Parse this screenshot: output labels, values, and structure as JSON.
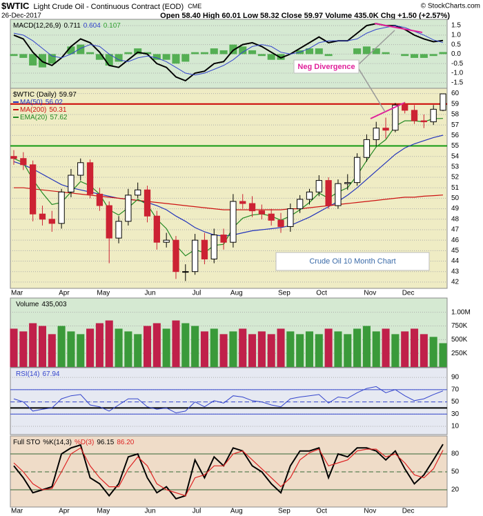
{
  "header": {
    "symbol": "$WTIC",
    "name": "Light Crude Oil - Continuous Contract (EOD)",
    "exchange": "CME",
    "date": "26-Dec-2017",
    "quote": "Open 58.40 High 60.01 Low 58.32 Close 59.97 Volume 435.0K Chg +1.50 (+2.57%)",
    "copyright": "© StockCharts.com"
  },
  "annotations": [
    "Neg Divergence",
    "Crude Oil 10 Month Chart"
  ],
  "chart_data": [
    {
      "type": "macd",
      "title": "MACD(12,26,9)",
      "background": "#d5e9d2",
      "grid": true,
      "ylim": [
        -1.8,
        1.83
      ],
      "yticks": [
        -1.5,
        {
          "value": -1,
          "label": "-1.0"
        },
        -0.5,
        {
          "value": 0,
          "label": "0.0"
        },
        0.5,
        {
          "value": 1,
          "label": "1.0"
        },
        1.5
      ],
      "series": [
        {
          "style": "histogram",
          "color": "#33a033",
          "values": [
            -0.1,
            -0.2,
            -0.6,
            -0.7,
            -0.5,
            0.0,
            0.4,
            0.5,
            0.1,
            -0.3,
            -0.6,
            -0.4,
            0.1,
            0.3,
            0.1,
            -0.3,
            -0.3,
            -0.5,
            -0.4,
            0.1,
            0.1,
            0.3,
            0.2,
            0.5,
            0.4,
            0.2,
            -0.1,
            -0.3,
            -0.3,
            0.0,
            0.2,
            0.3,
            0.3,
            -0.1,
            0.0,
            0.0,
            0.3,
            0.4,
            0.3,
            0.1,
            0.0,
            -0.1,
            -0.2,
            -0.2,
            -0.1,
            0.107
          ]
        },
        {
          "style": "line",
          "color": "#000000",
          "width": 2,
          "values": [
            1.0,
            0.8,
            0.1,
            -0.4,
            -0.6,
            -0.2,
            0.4,
            0.8,
            0.6,
            0.1,
            -0.6,
            -0.7,
            -0.3,
            0.1,
            0.0,
            -0.5,
            -0.7,
            -1.2,
            -1.4,
            -1.0,
            -0.9,
            -0.5,
            -0.4,
            0.2,
            0.5,
            0.6,
            0.4,
            0.1,
            -0.2,
            0.0,
            0.3,
            0.6,
            0.9,
            0.6,
            0.7,
            0.7,
            1.1,
            1.5,
            1.6,
            1.5,
            1.5,
            1.3,
            1.0,
            0.8,
            0.65,
            0.711
          ]
        },
        {
          "style": "line",
          "color": "#3344cc",
          "width": 1,
          "values": [
            1.1,
            1.0,
            0.7,
            0.3,
            -0.1,
            -0.2,
            0.0,
            0.3,
            0.5,
            0.4,
            0.0,
            -0.3,
            -0.4,
            -0.2,
            -0.1,
            -0.2,
            -0.4,
            -0.7,
            -1.0,
            -1.1,
            -1.0,
            -0.8,
            -0.6,
            -0.3,
            0.1,
            0.4,
            0.5,
            0.4,
            0.1,
            0.0,
            0.1,
            0.3,
            0.6,
            0.7,
            0.7,
            0.7,
            0.8,
            1.1,
            1.3,
            1.4,
            1.5,
            1.4,
            1.2,
            1.0,
            0.75,
            0.604
          ]
        }
      ],
      "legend_order": [
        1,
        2,
        0
      ]
    },
    {
      "type": "candlestick",
      "name": "$WTIC (Daily)",
      "background": "#efecc4",
      "grid": true,
      "up_color": "#ffffff",
      "down_color": "#cc2233",
      "ylim": [
        41.4,
        60.5
      ],
      "yticks": [
        42,
        43,
        44,
        45,
        46,
        47,
        48,
        49,
        50,
        51,
        52,
        53,
        54,
        55,
        56,
        57,
        58,
        59,
        60
      ],
      "categories": [
        "Mar",
        null,
        null,
        null,
        null,
        "Apr",
        null,
        null,
        null,
        "May",
        null,
        null,
        null,
        null,
        "Jun",
        null,
        null,
        null,
        null,
        "Jul",
        null,
        null,
        null,
        "Aug",
        null,
        null,
        null,
        null,
        "Sep",
        null,
        null,
        null,
        "Oct",
        null,
        null,
        null,
        null,
        "Nov",
        null,
        null,
        null,
        "Dec",
        null,
        null,
        null,
        null
      ],
      "open": [
        54.0,
        53.8,
        53.2,
        48.5,
        48.0,
        47.6,
        50.6,
        52.2,
        53.4,
        50.4,
        49.3,
        46.2,
        47.8,
        50.3,
        50.8,
        48.3,
        45.8,
        46.0,
        43.0,
        43.0,
        46.0,
        44.2,
        46.5,
        45.8,
        49.7,
        49.5,
        48.8,
        48.5,
        47.9,
        47.3,
        49.0,
        49.9,
        50.6,
        51.7,
        49.3,
        51.4,
        51.5,
        53.9,
        55.6,
        56.7,
        56.5,
        58.9,
        58.4,
        57.4,
        57.3,
        58.4
      ],
      "high": [
        54.6,
        54.4,
        53.6,
        49.3,
        48.8,
        50.9,
        52.8,
        53.8,
        53.7,
        51.0,
        49.7,
        48.3,
        50.9,
        51.5,
        51.2,
        48.8,
        46.7,
        46.4,
        43.7,
        46.6,
        46.7,
        47.1,
        47.1,
        50.4,
        50.4,
        50.2,
        49.4,
        49.0,
        48.6,
        49.5,
        50.3,
        50.9,
        52.2,
        52.0,
        51.8,
        52.3,
        54.3,
        56.1,
        57.3,
        57.7,
        59.1,
        59.2,
        58.9,
        58.0,
        58.9,
        60.01
      ],
      "low": [
        53.2,
        52.7,
        47.8,
        47.4,
        46.8,
        47.1,
        50.1,
        51.7,
        50.0,
        48.8,
        43.8,
        45.7,
        47.4,
        50.0,
        47.7,
        45.1,
        45.3,
        42.3,
        42.1,
        42.7,
        43.7,
        43.8,
        45.1,
        45.3,
        49.0,
        48.2,
        48.0,
        47.4,
        46.7,
        46.8,
        48.6,
        49.4,
        50.2,
        49.0,
        49.0,
        50.8,
        51.2,
        53.5,
        55.0,
        55.7,
        56.3,
        58.1,
        57.1,
        56.7,
        57.0,
        58.32
      ],
      "close": [
        53.8,
        53.2,
        48.5,
        48.0,
        47.6,
        50.6,
        52.2,
        53.4,
        50.4,
        49.3,
        46.2,
        47.8,
        50.3,
        50.8,
        48.3,
        45.8,
        46.0,
        43.0,
        43.0,
        46.0,
        44.2,
        46.5,
        45.8,
        49.7,
        49.5,
        48.8,
        48.5,
        47.9,
        47.3,
        49.0,
        49.9,
        50.6,
        51.7,
        49.3,
        51.4,
        51.5,
        53.9,
        55.6,
        56.7,
        56.5,
        58.9,
        58.4,
        57.4,
        57.3,
        58.5,
        59.97
      ],
      "series": [
        {
          "name": "MA(50)",
          "color": "#2233bb",
          "values": [
            53.5,
            53.2,
            52.8,
            52.3,
            51.8,
            51.3,
            51.0,
            50.8,
            50.6,
            50.4,
            50.2,
            50.0,
            49.9,
            49.8,
            49.6,
            49.3,
            48.9,
            48.3,
            47.8,
            47.2,
            46.8,
            46.5,
            46.4,
            46.5,
            46.7,
            46.9,
            47.0,
            47.1,
            47.2,
            47.4,
            47.8,
            48.2,
            48.7,
            49.2,
            49.7,
            50.3,
            51.0,
            51.8,
            52.6,
            53.4,
            54.2,
            54.8,
            55.2,
            55.5,
            55.8,
            56.02
          ]
        },
        {
          "name": "MA(200)",
          "color": "#cc1111",
          "values": [
            51.0,
            51.0,
            50.9,
            50.8,
            50.7,
            50.6,
            50.5,
            50.4,
            50.3,
            50.2,
            50.1,
            50.0,
            49.9,
            49.8,
            49.7,
            49.6,
            49.5,
            49.4,
            49.3,
            49.2,
            49.1,
            49.0,
            48.9,
            48.9,
            48.9,
            48.9,
            48.9,
            48.9,
            48.9,
            49.0,
            49.0,
            49.1,
            49.2,
            49.3,
            49.4,
            49.5,
            49.6,
            49.7,
            49.8,
            49.9,
            50.0,
            50.1,
            50.1,
            50.2,
            50.25,
            50.31
          ]
        },
        {
          "name": "EMA(20)",
          "color": "#228822",
          "values": [
            53.8,
            53.4,
            51.8,
            50.5,
            49.4,
            49.6,
            50.6,
            51.6,
            51.2,
            50.4,
            48.9,
            48.4,
            49.1,
            49.9,
            49.4,
            48.0,
            47.1,
            45.5,
            44.5,
            45.1,
            44.8,
            45.5,
            45.6,
            47.2,
            48.1,
            48.4,
            48.5,
            48.3,
            47.9,
            48.3,
            48.9,
            49.6,
            50.5,
            50.0,
            50.6,
            51.0,
            52.2,
            53.6,
            54.9,
            55.6,
            56.9,
            57.4,
            57.4,
            57.3,
            57.6,
            57.62
          ]
        }
      ],
      "hlines": [
        {
          "value": 59,
          "color": "#cc0000",
          "width": 2
        },
        {
          "value": 55,
          "color": "#119911",
          "width": 2
        }
      ]
    },
    {
      "type": "bar",
      "background": "#d5e9d2",
      "grid": true,
      "up_color": "#3a9a3a",
      "down_color": "#c0204a",
      "ylim": [
        0,
        1260000
      ],
      "yticks": [
        {
          "value": 250000,
          "label": "250K"
        },
        {
          "value": 500000,
          "label": "500K"
        },
        {
          "value": 750000,
          "label": "750K"
        },
        {
          "value": 1000000,
          "label": "1.00M"
        }
      ],
      "series": [
        {
          "name": "Volume",
          "color": "#000000",
          "values": [
            700000,
            650000,
            800000,
            750000,
            600000,
            750000,
            650000,
            600000,
            700000,
            800000,
            850000,
            700000,
            650000,
            600000,
            750000,
            800000,
            700000,
            850000,
            800000,
            750000,
            650000,
            700000,
            600000,
            650000,
            700000,
            600000,
            650000,
            600000,
            700000,
            650000,
            600000,
            650000,
            600000,
            700000,
            650000,
            600000,
            700000,
            750000,
            650000,
            700000,
            600000,
            650000,
            700000,
            600000,
            550000,
            435003
          ],
          "value_labels": [
            null,
            null,
            null,
            null,
            null,
            null,
            null,
            null,
            null,
            null,
            null,
            null,
            null,
            null,
            null,
            null,
            null,
            null,
            null,
            null,
            null,
            null,
            null,
            null,
            null,
            null,
            null,
            null,
            null,
            null,
            null,
            null,
            null,
            null,
            null,
            null,
            null,
            null,
            null,
            null,
            null,
            null,
            null,
            null,
            null,
            "435,003"
          ]
        }
      ]
    },
    {
      "type": "line",
      "background": "#e6e9f2",
      "grid": true,
      "ylim": [
        -3.5,
        105.9
      ],
      "yticks": [
        10,
        30,
        50,
        70,
        90
      ],
      "hlines": [
        {
          "value": 70,
          "color": "#3344cc",
          "width": 1
        },
        {
          "value": 30,
          "color": "#3344cc",
          "width": 1
        },
        {
          "value": 50,
          "color": "#3344cc",
          "width": 1,
          "dashed": true
        },
        {
          "value": 40,
          "color": "#000000",
          "width": 2
        }
      ],
      "series": [
        {
          "name": "RSI(14)",
          "color": "#3344cc",
          "width": 1,
          "values": [
            55,
            50,
            35,
            38,
            40,
            55,
            60,
            62,
            45,
            42,
            35,
            45,
            55,
            55,
            42,
            38,
            40,
            32,
            35,
            50,
            42,
            52,
            48,
            60,
            58,
            52,
            50,
            45,
            42,
            55,
            58,
            60,
            62,
            48,
            58,
            56,
            65,
            72,
            75,
            65,
            70,
            60,
            52,
            55,
            62,
            67.94
          ]
        }
      ]
    },
    {
      "type": "line",
      "title": "Full STO",
      "background": "#efdcc8",
      "grid": true,
      "ylim": [
        -8.9,
        110
      ],
      "yticks": [
        20,
        50,
        80
      ],
      "hlines": [
        {
          "value": 80,
          "color": "#336633",
          "width": 1
        },
        {
          "value": 20,
          "color": "#336633",
          "width": 1
        },
        {
          "value": 50,
          "color": "#336633",
          "width": 1,
          "dashed": true
        }
      ],
      "series": [
        {
          "name": "%K(14,3)",
          "color": "#000000",
          "width": 2,
          "values": [
            60,
            40,
            15,
            20,
            25,
            80,
            90,
            95,
            40,
            30,
            10,
            30,
            75,
            80,
            40,
            15,
            25,
            5,
            10,
            70,
            40,
            75,
            60,
            90,
            85,
            60,
            50,
            30,
            15,
            60,
            85,
            85,
            90,
            40,
            80,
            75,
            90,
            90,
            85,
            70,
            85,
            55,
            30,
            45,
            70,
            96.15
          ]
        },
        {
          "name": "%D(3)",
          "color": "#dd2222",
          "width": 1.2,
          "values": [
            65,
            50,
            30,
            20,
            22,
            50,
            80,
            90,
            60,
            40,
            25,
            25,
            55,
            75,
            60,
            30,
            20,
            15,
            10,
            40,
            45,
            60,
            60,
            80,
            85,
            70,
            55,
            40,
            25,
            40,
            70,
            82,
            88,
            60,
            65,
            70,
            85,
            88,
            88,
            75,
            80,
            65,
            45,
            40,
            55,
            86.2
          ],
          "value_labels": [
            null,
            null,
            null,
            null,
            null,
            null,
            null,
            null,
            null,
            null,
            null,
            null,
            null,
            null,
            null,
            null,
            null,
            null,
            null,
            null,
            null,
            null,
            null,
            null,
            null,
            null,
            null,
            null,
            null,
            null,
            null,
            null,
            null,
            null,
            null,
            null,
            null,
            null,
            null,
            null,
            null,
            null,
            null,
            null,
            null,
            "86.20"
          ]
        }
      ]
    }
  ]
}
